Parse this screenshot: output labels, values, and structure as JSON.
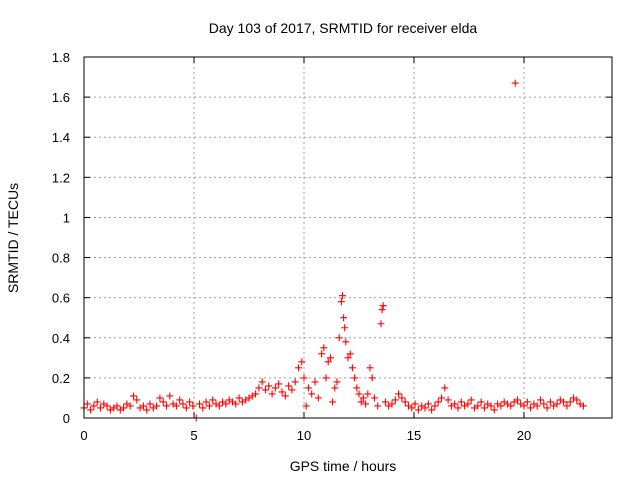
{
  "chart_data": {
    "type": "scatter",
    "title": "Day 103 of 2017, SRMTID for receiver elda",
    "xlabel": "GPS time / hours",
    "ylabel": "SRMTID / TECUs",
    "xlim": [
      0,
      24
    ],
    "ylim": [
      0,
      1.8
    ],
    "xticks": [
      0,
      5,
      10,
      15,
      20
    ],
    "xtick_labels": [
      "0",
      "5",
      "10",
      "15",
      "20"
    ],
    "yticks": [
      0,
      0.2,
      0.4,
      0.6,
      0.8,
      1,
      1.2,
      1.4,
      1.6,
      1.8
    ],
    "ytick_labels": [
      "0",
      "0.2",
      "0.4",
      "0.6",
      "0.8",
      "1",
      "1.2",
      "1.4",
      "1.6",
      "1.8"
    ],
    "grid": true,
    "marker": "plus",
    "marker_color": "#ff0000",
    "series": [
      {
        "name": "SRMTID",
        "points": [
          [
            0.0,
            0.05
          ],
          [
            0.15,
            0.07
          ],
          [
            0.3,
            0.04
          ],
          [
            0.45,
            0.06
          ],
          [
            0.6,
            0.08
          ],
          [
            0.75,
            0.05
          ],
          [
            0.9,
            0.07
          ],
          [
            1.05,
            0.06
          ],
          [
            1.2,
            0.04
          ],
          [
            1.35,
            0.05
          ],
          [
            1.5,
            0.06
          ],
          [
            1.65,
            0.04
          ],
          [
            1.8,
            0.05
          ],
          [
            1.95,
            0.07
          ],
          [
            2.1,
            0.06
          ],
          [
            2.25,
            0.11
          ],
          [
            2.4,
            0.09
          ],
          [
            2.55,
            0.05
          ],
          [
            2.7,
            0.06
          ],
          [
            2.85,
            0.04
          ],
          [
            3.0,
            0.07
          ],
          [
            3.15,
            0.05
          ],
          [
            3.3,
            0.06
          ],
          [
            3.45,
            0.1
          ],
          [
            3.6,
            0.08
          ],
          [
            3.75,
            0.06
          ],
          [
            3.9,
            0.11
          ],
          [
            4.05,
            0.07
          ],
          [
            4.2,
            0.06
          ],
          [
            4.35,
            0.09
          ],
          [
            4.5,
            0.07
          ],
          [
            4.65,
            0.05
          ],
          [
            4.8,
            0.08
          ],
          [
            4.95,
            0.06
          ],
          [
            5.1,
            0.0
          ],
          [
            5.25,
            0.07
          ],
          [
            5.4,
            0.05
          ],
          [
            5.55,
            0.08
          ],
          [
            5.7,
            0.06
          ],
          [
            5.85,
            0.09
          ],
          [
            6.0,
            0.07
          ],
          [
            6.15,
            0.06
          ],
          [
            6.3,
            0.08
          ],
          [
            6.45,
            0.07
          ],
          [
            6.6,
            0.09
          ],
          [
            6.75,
            0.08
          ],
          [
            6.9,
            0.07
          ],
          [
            7.05,
            0.1
          ],
          [
            7.2,
            0.08
          ],
          [
            7.35,
            0.09
          ],
          [
            7.5,
            0.1
          ],
          [
            7.65,
            0.11
          ],
          [
            7.8,
            0.12
          ],
          [
            7.95,
            0.15
          ],
          [
            8.1,
            0.18
          ],
          [
            8.25,
            0.14
          ],
          [
            8.4,
            0.16
          ],
          [
            8.55,
            0.12
          ],
          [
            8.7,
            0.15
          ],
          [
            8.85,
            0.17
          ],
          [
            9.0,
            0.13
          ],
          [
            9.15,
            0.11
          ],
          [
            9.3,
            0.16
          ],
          [
            9.45,
            0.14
          ],
          [
            9.6,
            0.18
          ],
          [
            9.75,
            0.25
          ],
          [
            9.9,
            0.28
          ],
          [
            10.0,
            0.2
          ],
          [
            10.1,
            0.06
          ],
          [
            10.2,
            0.15
          ],
          [
            10.35,
            0.12
          ],
          [
            10.5,
            0.18
          ],
          [
            10.65,
            0.1
          ],
          [
            10.8,
            0.32
          ],
          [
            10.9,
            0.35
          ],
          [
            11.0,
            0.2
          ],
          [
            11.1,
            0.28
          ],
          [
            11.2,
            0.3
          ],
          [
            11.3,
            0.08
          ],
          [
            11.4,
            0.15
          ],
          [
            11.5,
            0.18
          ],
          [
            11.6,
            0.4
          ],
          [
            11.7,
            0.58
          ],
          [
            11.75,
            0.61
          ],
          [
            11.8,
            0.5
          ],
          [
            11.85,
            0.45
          ],
          [
            11.9,
            0.38
          ],
          [
            12.0,
            0.3
          ],
          [
            12.1,
            0.32
          ],
          [
            12.2,
            0.25
          ],
          [
            12.3,
            0.2
          ],
          [
            12.4,
            0.15
          ],
          [
            12.5,
            0.12
          ],
          [
            12.6,
            0.08
          ],
          [
            12.7,
            0.1
          ],
          [
            12.8,
            0.07
          ],
          [
            12.9,
            0.12
          ],
          [
            13.0,
            0.25
          ],
          [
            13.1,
            0.2
          ],
          [
            13.2,
            0.1
          ],
          [
            13.35,
            0.06
          ],
          [
            13.5,
            0.47
          ],
          [
            13.55,
            0.54
          ],
          [
            13.6,
            0.56
          ],
          [
            13.7,
            0.08
          ],
          [
            13.85,
            0.06
          ],
          [
            14.0,
            0.07
          ],
          [
            14.15,
            0.09
          ],
          [
            14.3,
            0.12
          ],
          [
            14.45,
            0.1
          ],
          [
            14.6,
            0.08
          ],
          [
            14.75,
            0.06
          ],
          [
            14.9,
            0.05
          ],
          [
            15.05,
            0.07
          ],
          [
            15.2,
            0.04
          ],
          [
            15.35,
            0.06
          ],
          [
            15.5,
            0.05
          ],
          [
            15.65,
            0.07
          ],
          [
            15.8,
            0.04
          ],
          [
            15.95,
            0.06
          ],
          [
            16.1,
            0.08
          ],
          [
            16.25,
            0.1
          ],
          [
            16.4,
            0.15
          ],
          [
            16.55,
            0.09
          ],
          [
            16.7,
            0.06
          ],
          [
            16.85,
            0.07
          ],
          [
            17.0,
            0.05
          ],
          [
            17.15,
            0.08
          ],
          [
            17.3,
            0.06
          ],
          [
            17.45,
            0.07
          ],
          [
            17.6,
            0.09
          ],
          [
            17.75,
            0.05
          ],
          [
            17.9,
            0.06
          ],
          [
            18.05,
            0.08
          ],
          [
            18.2,
            0.05
          ],
          [
            18.35,
            0.07
          ],
          [
            18.5,
            0.06
          ],
          [
            18.65,
            0.04
          ],
          [
            18.8,
            0.07
          ],
          [
            18.95,
            0.06
          ],
          [
            19.1,
            0.08
          ],
          [
            19.25,
            0.07
          ],
          [
            19.4,
            0.06
          ],
          [
            19.55,
            0.08
          ],
          [
            19.6,
            1.67
          ],
          [
            19.7,
            0.09
          ],
          [
            19.85,
            0.07
          ],
          [
            20.0,
            0.06
          ],
          [
            20.15,
            0.08
          ],
          [
            20.3,
            0.05
          ],
          [
            20.45,
            0.07
          ],
          [
            20.6,
            0.06
          ],
          [
            20.75,
            0.09
          ],
          [
            20.9,
            0.07
          ],
          [
            21.05,
            0.05
          ],
          [
            21.2,
            0.08
          ],
          [
            21.35,
            0.06
          ],
          [
            21.5,
            0.07
          ],
          [
            21.65,
            0.09
          ],
          [
            21.8,
            0.08
          ],
          [
            21.95,
            0.06
          ],
          [
            22.1,
            0.08
          ],
          [
            22.25,
            0.1
          ],
          [
            22.4,
            0.09
          ],
          [
            22.55,
            0.07
          ],
          [
            22.7,
            0.06
          ]
        ]
      }
    ]
  }
}
